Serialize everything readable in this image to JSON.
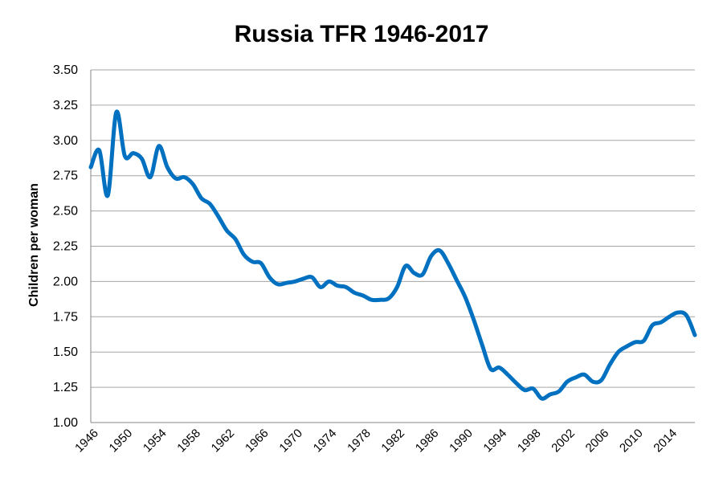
{
  "chart_data": {
    "type": "line",
    "title": "Russia TFR 1946-2017",
    "xlabel": "",
    "ylabel": "Children per woman",
    "xlim": [
      1946,
      2017
    ],
    "ylim": [
      1.0,
      3.5
    ],
    "grid": true,
    "legend": "none",
    "y_ticks": [
      "1.00",
      "1.25",
      "1.50",
      "1.75",
      "2.00",
      "2.25",
      "2.50",
      "2.75",
      "3.00",
      "3.25",
      "3.50"
    ],
    "x_ticks": [
      "1946",
      "1950",
      "1954",
      "1958",
      "1962",
      "1966",
      "1970",
      "1974",
      "1978",
      "1982",
      "1986",
      "1990",
      "1994",
      "1998",
      "2002",
      "2006",
      "2010",
      "2014"
    ],
    "series": [
      {
        "color": "#0070c0",
        "x": [
          1946,
          1947,
          1948,
          1949,
          1950,
          1951,
          1952,
          1953,
          1954,
          1955,
          1956,
          1957,
          1958,
          1959,
          1960,
          1961,
          1962,
          1963,
          1964,
          1965,
          1966,
          1967,
          1968,
          1969,
          1970,
          1971,
          1972,
          1973,
          1974,
          1975,
          1976,
          1977,
          1978,
          1979,
          1980,
          1981,
          1982,
          1983,
          1984,
          1985,
          1986,
          1987,
          1988,
          1989,
          1990,
          1991,
          1992,
          1993,
          1994,
          1995,
          1996,
          1997,
          1998,
          1999,
          2000,
          2001,
          2002,
          2003,
          2004,
          2005,
          2006,
          2007,
          2008,
          2009,
          2010,
          2011,
          2012,
          2013,
          2014,
          2015,
          2016,
          2017
        ],
        "y": [
          2.81,
          2.93,
          2.61,
          3.2,
          2.89,
          2.91,
          2.87,
          2.74,
          2.96,
          2.81,
          2.73,
          2.74,
          2.69,
          2.59,
          2.55,
          2.46,
          2.36,
          2.3,
          2.19,
          2.14,
          2.13,
          2.03,
          1.98,
          1.99,
          2.0,
          2.02,
          2.03,
          1.96,
          2.0,
          1.97,
          1.96,
          1.92,
          1.9,
          1.87,
          1.87,
          1.88,
          1.96,
          2.11,
          2.06,
          2.05,
          2.18,
          2.22,
          2.13,
          2.01,
          1.89,
          1.73,
          1.55,
          1.38,
          1.39,
          1.34,
          1.28,
          1.23,
          1.24,
          1.17,
          1.2,
          1.22,
          1.29,
          1.32,
          1.34,
          1.29,
          1.3,
          1.41,
          1.5,
          1.54,
          1.57,
          1.58,
          1.69,
          1.71,
          1.75,
          1.78,
          1.76,
          1.62
        ]
      }
    ]
  }
}
